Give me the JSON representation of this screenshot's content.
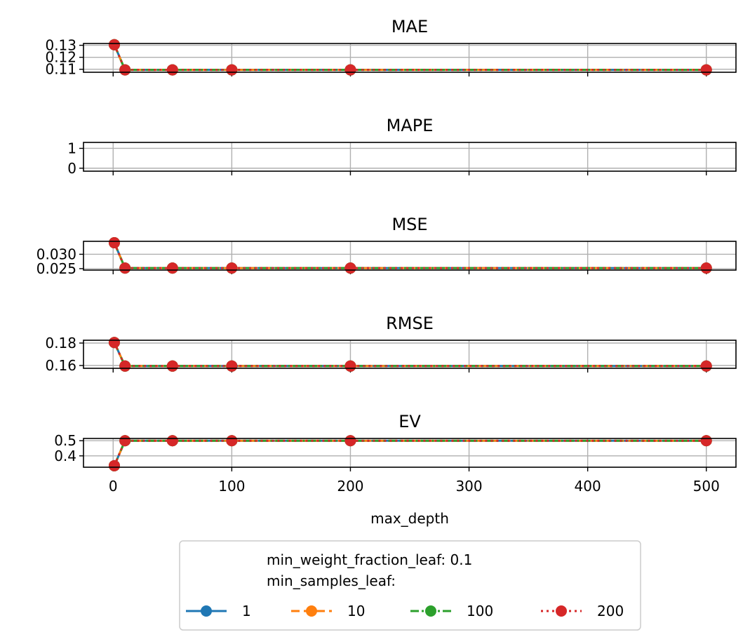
{
  "chart_data": {
    "type": "line",
    "xlabel": "max_depth",
    "x": [
      1,
      10,
      50,
      100,
      200,
      500
    ],
    "xlim": [
      -25,
      525
    ],
    "xticks": [
      0,
      100,
      200,
      300,
      400,
      500
    ],
    "legend": {
      "title": "min_weight_fraction_leaf: 0.1\nmin_samples_leaf:",
      "placement": "bottom-center",
      "entries": [
        {
          "label": "1",
          "color": "#1f77b4",
          "dash": "solid"
        },
        {
          "label": "10",
          "color": "#ff7f0e",
          "dash": "dashed"
        },
        {
          "label": "100",
          "color": "#2ca02c",
          "dash": "dashdot"
        },
        {
          "label": "200",
          "color": "#d62728",
          "dash": "dotted"
        }
      ]
    },
    "grid": true,
    "subplots": [
      {
        "title": "MAE",
        "ylim": [
          0.1075,
          0.1315
        ],
        "yticks": [
          0.11,
          0.12,
          0.13
        ],
        "ytick_labels": [
          "0.11",
          "0.12",
          "0.13"
        ],
        "series": [
          {
            "name": "1",
            "values": [
              0.1305,
              0.1095,
              0.1095,
              0.1095,
              0.1095,
              0.1095
            ]
          },
          {
            "name": "10",
            "values": [
              0.1305,
              0.1095,
              0.1095,
              0.1095,
              0.1095,
              0.1095
            ]
          },
          {
            "name": "100",
            "values": [
              0.1305,
              0.1095,
              0.1095,
              0.1095,
              0.1095,
              0.1095
            ]
          },
          {
            "name": "200",
            "values": [
              0.1305,
              0.1095,
              0.1095,
              0.1095,
              0.1095,
              0.1095
            ]
          }
        ]
      },
      {
        "title": "MAPE",
        "ylim": [
          -0.15,
          1.3
        ],
        "yticks": [
          0,
          1
        ],
        "ytick_labels": [
          "0",
          "1"
        ],
        "series": []
      },
      {
        "title": "MSE",
        "ylim": [
          0.0245,
          0.0345
        ],
        "yticks": [
          0.025,
          0.03
        ],
        "ytick_labels": [
          "0.025",
          "0.030"
        ],
        "series": [
          {
            "name": "1",
            "values": [
              0.034,
              0.0252,
              0.0252,
              0.0252,
              0.0252,
              0.0252
            ]
          },
          {
            "name": "10",
            "values": [
              0.034,
              0.0252,
              0.0252,
              0.0252,
              0.0252,
              0.0252
            ]
          },
          {
            "name": "100",
            "values": [
              0.034,
              0.0252,
              0.0252,
              0.0252,
              0.0252,
              0.0252
            ]
          },
          {
            "name": "200",
            "values": [
              0.034,
              0.0252,
              0.0252,
              0.0252,
              0.0252,
              0.0252
            ]
          }
        ]
      },
      {
        "title": "RMSE",
        "ylim": [
          0.1575,
          0.1825
        ],
        "yticks": [
          0.16,
          0.18
        ],
        "ytick_labels": [
          "0.16",
          "0.18"
        ],
        "series": [
          {
            "name": "1",
            "values": [
              0.1805,
              0.1595,
              0.1595,
              0.1595,
              0.1595,
              0.1595
            ]
          },
          {
            "name": "10",
            "values": [
              0.1805,
              0.1595,
              0.1595,
              0.1595,
              0.1595,
              0.1595
            ]
          },
          {
            "name": "100",
            "values": [
              0.1805,
              0.1595,
              0.1595,
              0.1595,
              0.1595,
              0.1595
            ]
          },
          {
            "name": "200",
            "values": [
              0.1805,
              0.1595,
              0.1595,
              0.1595,
              0.1595,
              0.1595
            ]
          }
        ]
      },
      {
        "title": "EV",
        "ylim": [
          0.325,
          0.515
        ],
        "yticks": [
          0.4,
          0.5
        ],
        "ytick_labels": [
          "0.4",
          "0.5"
        ],
        "series": [
          {
            "name": "1",
            "values": [
              0.335,
              0.5,
              0.5,
              0.5,
              0.5,
              0.5
            ]
          },
          {
            "name": "10",
            "values": [
              0.335,
              0.5,
              0.5,
              0.5,
              0.5,
              0.5
            ]
          },
          {
            "name": "100",
            "values": [
              0.335,
              0.5,
              0.5,
              0.5,
              0.5,
              0.5
            ]
          },
          {
            "name": "200",
            "values": [
              0.335,
              0.5,
              0.5,
              0.5,
              0.5,
              0.5
            ]
          }
        ]
      }
    ]
  }
}
